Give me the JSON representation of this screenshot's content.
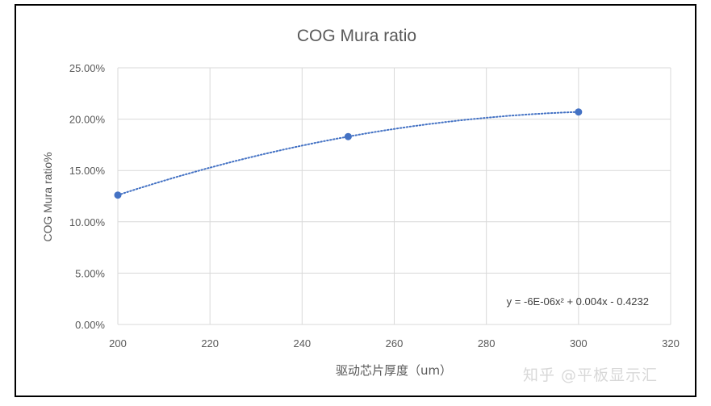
{
  "chart_data": {
    "type": "scatter",
    "title": "COG Mura ratio",
    "xlabel": "驱动芯片厚度（um）",
    "ylabel": "COG Mura ratio%",
    "xlim": [
      200,
      320
    ],
    "ylim": [
      0,
      0.25
    ],
    "x_ticks": [
      "200",
      "220",
      "240",
      "260",
      "280",
      "300",
      "320"
    ],
    "y_ticks": [
      "0.00%",
      "5.00%",
      "10.00%",
      "15.00%",
      "20.00%",
      "25.00%"
    ],
    "grid": true,
    "series": [
      {
        "x": [
          200,
          250,
          300
        ],
        "y": [
          0.126,
          0.183,
          0.207
        ]
      }
    ],
    "trendline": {
      "type": "polynomial",
      "order": 2,
      "coefficients": [
        -6e-06,
        0.004,
        -0.4232
      ],
      "equation": "y = -6E-06x² + 0.004x - 0.4232"
    },
    "colors": {
      "marker": "#4472c4",
      "grid": "#d9d9d9",
      "text": "#595959"
    }
  },
  "watermark": "知乎 @平板显示汇"
}
